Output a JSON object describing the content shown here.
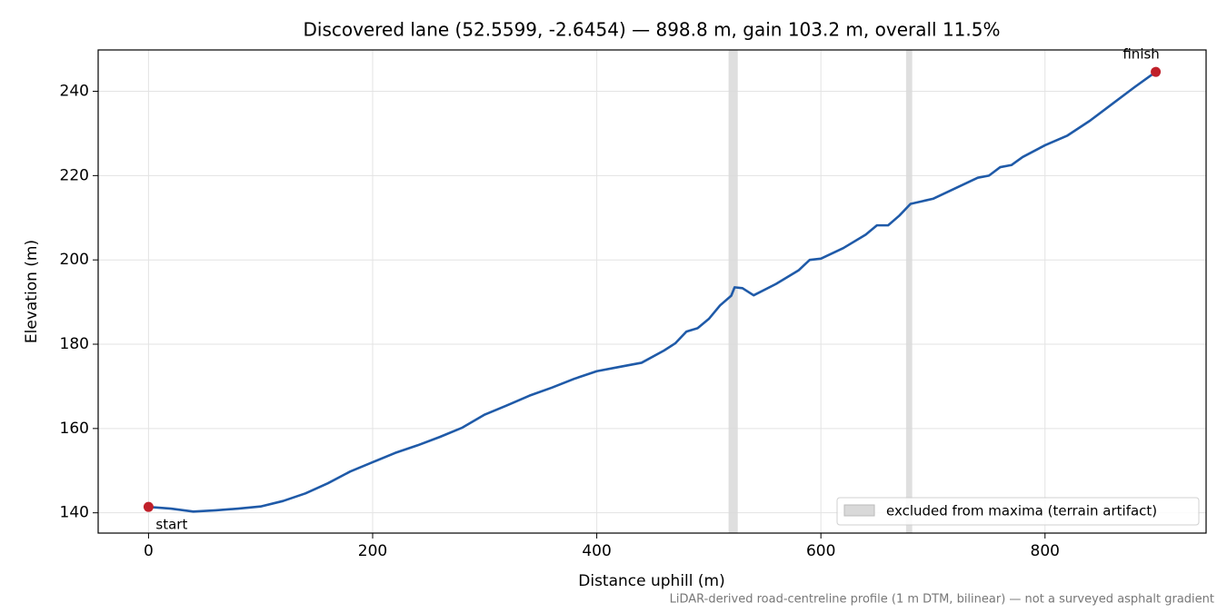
{
  "chart_data": {
    "type": "line",
    "title": "Discovered lane (52.5599, -2.6454) — 898.8 m, gain 103.2 m, overall 11.5%",
    "x_label": "Distance uphill (m)",
    "y_label": "Elevation (m)",
    "footnote": "LiDAR-derived road-centreline profile (1 m DTM, bilinear) — not a surveyed asphalt gradient",
    "x": [
      0,
      20,
      40,
      60,
      80,
      100,
      120,
      140,
      160,
      180,
      200,
      220,
      240,
      260,
      280,
      300,
      320,
      340,
      360,
      380,
      400,
      420,
      440,
      460,
      470,
      480,
      490,
      500,
      510,
      520,
      523,
      530,
      540,
      560,
      580,
      590,
      600,
      620,
      640,
      650,
      660,
      670,
      680,
      700,
      720,
      740,
      750,
      760,
      770,
      780,
      800,
      820,
      840,
      860,
      880,
      898.8
    ],
    "values": [
      141.4,
      141.0,
      140.3,
      140.6,
      141.0,
      141.5,
      142.8,
      144.6,
      147.0,
      149.8,
      152.0,
      154.2,
      156.0,
      158.0,
      160.2,
      163.3,
      165.5,
      167.8,
      169.7,
      171.8,
      173.6,
      174.6,
      175.6,
      178.5,
      180.2,
      183.0,
      183.8,
      186.0,
      189.2,
      191.5,
      193.5,
      193.3,
      191.6,
      194.3,
      197.5,
      200.0,
      200.3,
      202.8,
      206.0,
      208.2,
      208.2,
      210.5,
      213.3,
      214.5,
      217.0,
      219.5,
      220.0,
      222.0,
      222.5,
      224.4,
      227.2,
      229.5,
      233.0,
      237.0,
      241.0,
      244.6
    ],
    "color": "#1f5aa8",
    "spans": [
      [
        517.6,
        525.8
      ],
      [
        676.0,
        681.5
      ]
    ],
    "span_label": "excluded from maxima (terrain artifact)",
    "span_color": "#d9d9d9",
    "annotations": [
      {
        "text": "start",
        "x": 0,
        "y": 141.4
      },
      {
        "text": "finish",
        "x": 898.8,
        "y": 244.6
      }
    ],
    "marker_color": "#c0202a",
    "xlim": [
      -44.94,
      943.74
    ],
    "ylim": [
      135.19,
      249.81
    ],
    "xticks": [
      0,
      200,
      400,
      600,
      800
    ],
    "yticks": [
      140,
      160,
      180,
      200,
      220,
      240
    ],
    "grid": true,
    "legend": "lower right"
  }
}
